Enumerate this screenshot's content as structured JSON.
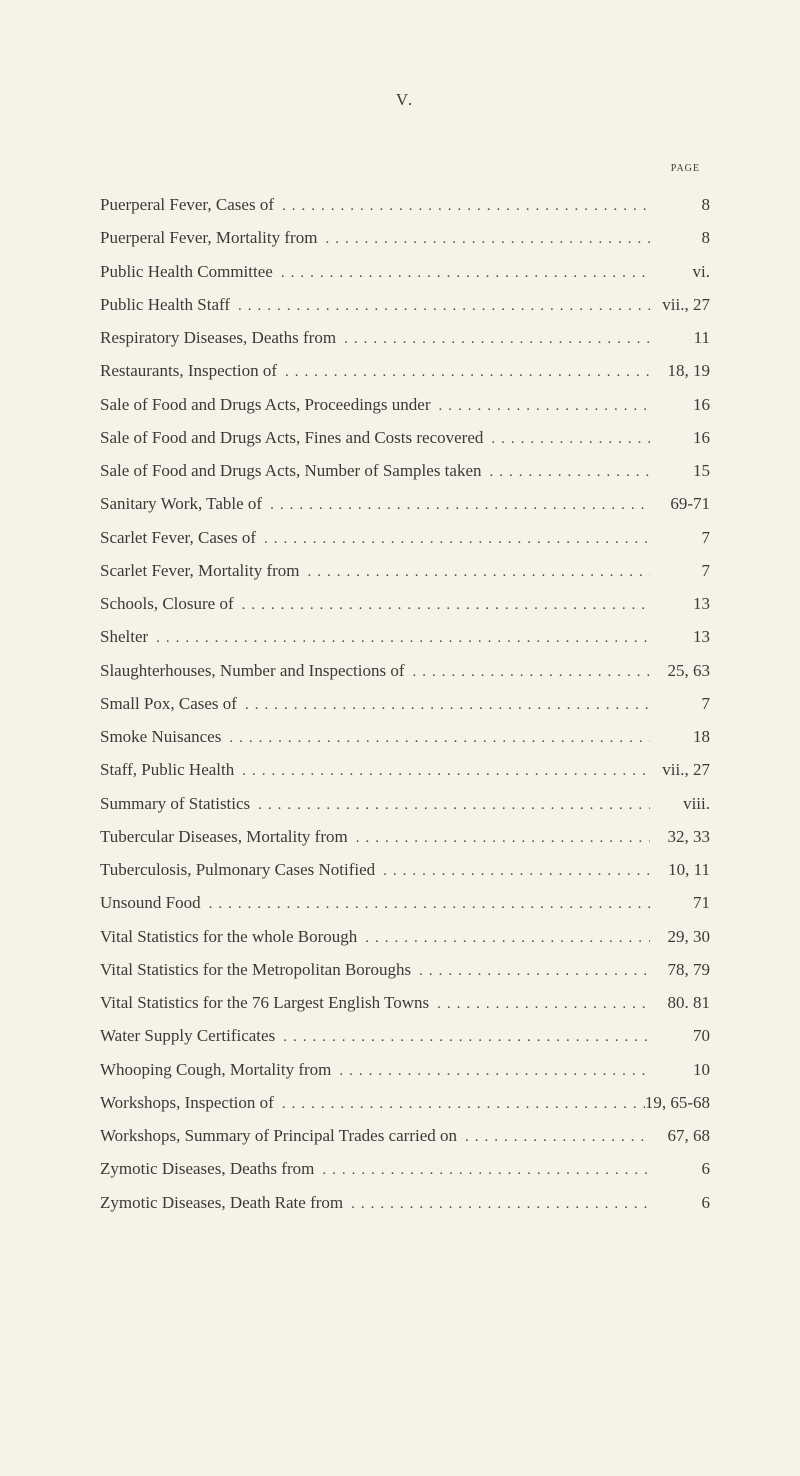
{
  "page_numeral": "V.",
  "header": "page",
  "background_color": "#f5f2e8",
  "text_color": "#3a3a36",
  "font_family": "Georgia, 'Times New Roman', serif",
  "title_fontsize": 17,
  "header_fontsize": 14,
  "entry_fontsize": 17,
  "line_height": 1.95,
  "dot_letter_spacing": 6,
  "entries": [
    {
      "title": "Puerperal Fever, Cases of",
      "page": "8"
    },
    {
      "title": "Puerperal Fever, Mortality from",
      "page": "8"
    },
    {
      "title": "Public Health Committee",
      "page": "vi."
    },
    {
      "title": "Public Health Staff",
      "page": "vii., 27"
    },
    {
      "title": "Respiratory Diseases, Deaths from",
      "page": "11"
    },
    {
      "title": "Restaurants, Inspection of",
      "page": "18, 19"
    },
    {
      "title": "Sale of Food and Drugs Acts, Proceedings under",
      "page": "16"
    },
    {
      "title": "Sale of Food and Drugs Acts, Fines and Costs recovered",
      "page": "16"
    },
    {
      "title": "Sale of Food and Drugs Acts, Number of Samples taken",
      "page": "15"
    },
    {
      "title": "Sanitary Work, Table of",
      "page": "69-71"
    },
    {
      "title": "Scarlet Fever, Cases of",
      "page": "7"
    },
    {
      "title": "Scarlet Fever, Mortality from",
      "page": "7"
    },
    {
      "title": "Schools, Closure of",
      "page": "13"
    },
    {
      "title": "Shelter",
      "page": "13"
    },
    {
      "title": "Slaughterhouses, Number and Inspections of",
      "page": "25, 63"
    },
    {
      "title": "Small Pox, Cases of",
      "page": "7"
    },
    {
      "title": "Smoke Nuisances",
      "page": "18"
    },
    {
      "title": "Staff, Public Health",
      "page": "vii., 27"
    },
    {
      "title": "Summary of Statistics",
      "page": "viii."
    },
    {
      "title": "Tubercular Diseases, Mortality from",
      "page": "32, 33"
    },
    {
      "title": "Tuberculosis, Pulmonary Cases Notified",
      "page": "10, 11"
    },
    {
      "title": "Unsound Food",
      "page": "71"
    },
    {
      "title": "Vital Statistics for the whole Borough",
      "page": "29, 30"
    },
    {
      "title": "Vital Statistics for the Metropolitan Boroughs",
      "page": "78, 79"
    },
    {
      "title": "Vital Statistics for the 76 Largest English Towns",
      "page": "80. 81"
    },
    {
      "title": "Water Supply Certificates",
      "page": "70"
    },
    {
      "title": "Whooping Cough, Mortality from",
      "page": "10"
    },
    {
      "title": "Workshops, Inspection of",
      "page": "19, 65-68"
    },
    {
      "title": "Workshops, Summary of Principal Trades carried on",
      "page": "67, 68"
    },
    {
      "title": "Zymotic Diseases, Deaths from",
      "page": "6"
    },
    {
      "title": "Zymotic Diseases, Death Rate from",
      "page": "6"
    }
  ]
}
